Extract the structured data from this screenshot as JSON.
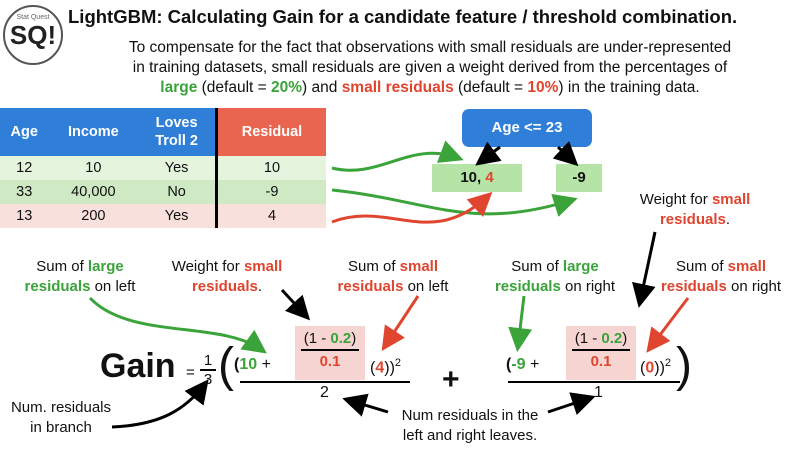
{
  "title": "LightGBM: Calculating Gain for a candidate feature / threshold combination.",
  "intro": {
    "line1": "To compensate for the fact that observations with small residuals are under-represented",
    "line2": "in training datasets, small residuals are given a weight derived from the percentages of",
    "line3_large": "large",
    "line3_a": " (default = ",
    "line3_large_default": "20%",
    "line3_b": ") and ",
    "line3_small": "small residuals",
    "line3_c": " (default = ",
    "line3_small_default": "10%",
    "line3_d": ") in the training data."
  },
  "logo": {
    "icon": "statquest-logo"
  },
  "table": {
    "headers": {
      "age": "Age",
      "income": "Income",
      "loves1": "Loves",
      "loves2": "Troll 2",
      "residual": "Residual"
    },
    "rows": [
      {
        "age": "12",
        "income": "10",
        "loves": "Yes",
        "residual": "10"
      },
      {
        "age": "33",
        "income": "40,000",
        "loves": "No",
        "residual": "-9"
      },
      {
        "age": "13",
        "income": "200",
        "loves": "Yes",
        "residual": "4"
      }
    ]
  },
  "tree": {
    "root": "Age <= 23",
    "left_a": "10,",
    "left_b": "4",
    "right": "-9"
  },
  "annotations": {
    "weight_right_1": "Weight for ",
    "weight_right_2": "small",
    "weight_right_3": "residuals",
    "weight_right_4": ".",
    "sum_large_left_1": "Sum of ",
    "sum_large_left_2": "large",
    "sum_large_left_3": "residuals",
    "sum_large_left_4": " on left",
    "weight_left_1": "Weight for ",
    "weight_left_2": "small",
    "weight_left_3": "residuals",
    "weight_left_4": ".",
    "sum_small_left_1": "Sum of ",
    "sum_small_left_2": "small",
    "sum_small_left_3": "residuals",
    "sum_small_left_4": " on left",
    "sum_large_right_1": "Sum of ",
    "sum_large_right_2": "large",
    "sum_large_right_3": "residuals",
    "sum_large_right_4": " on right",
    "sum_small_right_1": "Sum of ",
    "sum_small_right_2": "small",
    "sum_small_right_3": "residuals",
    "sum_small_right_4": " on right",
    "num_residuals_1": "Num. residuals",
    "num_residuals_2": "in branch",
    "num_leaves_1": "Num residuals in the",
    "num_leaves_2": "left and right leaves."
  },
  "formula": {
    "gain": "Gain",
    "equals": "=",
    "one": "1",
    "three": "3",
    "left_open": "(",
    "left_large": "10",
    "plus_left": " +",
    "weight_num_open": "(1 - ",
    "weight_large_pct": "0.2",
    "weight_num_close": ")",
    "weight_den": "0.1",
    "left_small": "4",
    "square": "2",
    "left_den": "2",
    "big_plus": "+",
    "right_large": "-9",
    "plus_right": " +",
    "right_small": "0",
    "right_den": "1"
  },
  "colors": {
    "blue": "#2f7fd8",
    "green": "#3aa33a",
    "red": "#e0452f",
    "leaf": "#b6e3a6",
    "pink": "#f6d4d2"
  }
}
